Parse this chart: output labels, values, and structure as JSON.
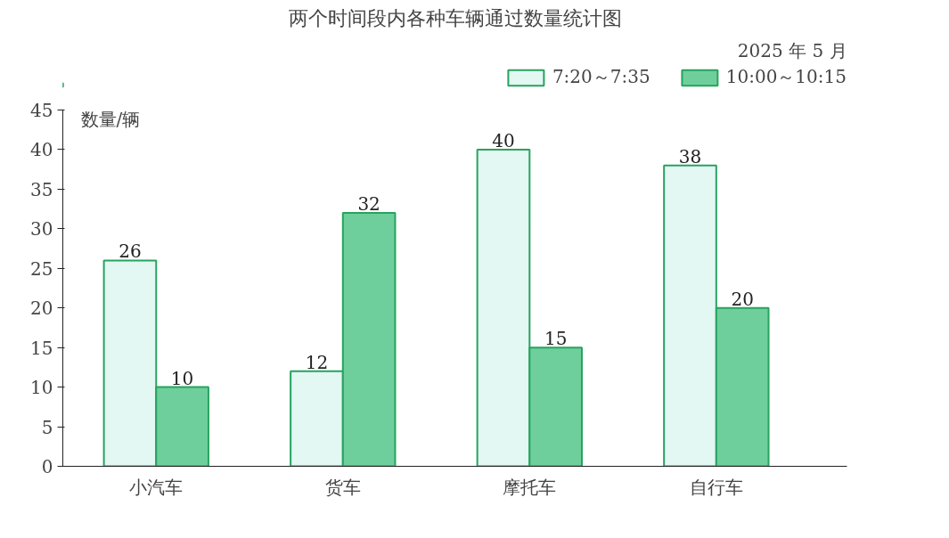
{
  "chart_data": {
    "type": "bar",
    "title": "两个时间段内各种车辆通过数量统计图",
    "subtitle": "2025 年 5 月",
    "ylabel": "数量/辆",
    "categories": [
      "小汽车",
      "货车",
      "摩托车",
      "自行车"
    ],
    "series": [
      {
        "name": "7:20～7:35",
        "color": "#e3f7f3",
        "values": [
          26,
          12,
          40,
          38
        ]
      },
      {
        "name": "10:00～10:15",
        "color": "#6fcf9c",
        "values": [
          10,
          32,
          15,
          20
        ]
      }
    ],
    "ylim": [
      0,
      45
    ],
    "yticks": [
      0,
      5,
      10,
      15,
      20,
      25,
      30,
      35,
      40,
      45
    ],
    "grid": false,
    "legend": "top right",
    "data_labels": true
  }
}
